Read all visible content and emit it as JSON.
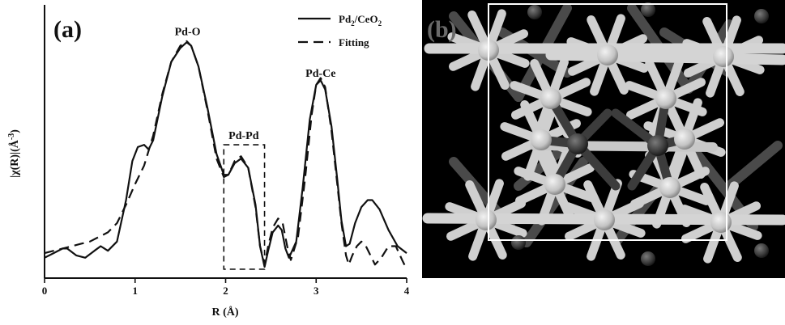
{
  "panel_a": {
    "label": "(a)",
    "peak_labels": [
      "Pd-O",
      "Pd-Pd",
      "Pd-Ce"
    ],
    "legend": {
      "solid": {
        "text": "Pd",
        "sub": "2",
        "text2": "/CeO",
        "sub2": "2"
      },
      "dashed": "Fitting"
    },
    "xlabel": "R (Å)",
    "ylabel": "|χ(R)|(Å",
    "ylabel_sup": "-3",
    "ylabel_close": ")",
    "x_ticks": [
      "0",
      "1",
      "2",
      "3",
      "4"
    ]
  },
  "panel_b": {
    "label": "(b)"
  },
  "chart_data": {
    "type": "line",
    "xlabel": "R (Å)",
    "ylabel": "|χ(R)|(Å-3)",
    "xlim": [
      0,
      4
    ],
    "ylim": [
      0,
      1
    ],
    "grid": false,
    "legend_position": "top-right",
    "annotations": [
      {
        "text": "Pd-O",
        "x": 1.58,
        "y": 0.98
      },
      {
        "text": "Pd-Pd",
        "x": 2.2,
        "y": 0.53
      },
      {
        "text": "Pd-Ce",
        "x": 3.05,
        "y": 0.8
      }
    ],
    "highlight_box": {
      "x": [
        1.98,
        2.43
      ],
      "y": [
        0.0,
        0.54
      ]
    },
    "series": [
      {
        "name": "Pd2/CeO2",
        "style": "solid",
        "x": [
          0,
          0.1,
          0.2,
          0.25,
          0.35,
          0.45,
          0.55,
          0.62,
          0.7,
          0.8,
          0.9,
          0.97,
          1.03,
          1.1,
          1.15,
          1.2,
          1.3,
          1.4,
          1.5,
          1.57,
          1.62,
          1.7,
          1.8,
          1.9,
          1.98,
          2.03,
          2.1,
          2.17,
          2.25,
          2.33,
          2.38,
          2.43,
          2.47,
          2.52,
          2.58,
          2.62,
          2.66,
          2.7,
          2.78,
          2.85,
          2.93,
          3.0,
          3.05,
          3.1,
          3.17,
          3.23,
          3.28,
          3.33,
          3.37,
          3.43,
          3.5,
          3.57,
          3.62,
          3.7,
          3.8,
          3.9,
          4.0
        ],
        "y": [
          0.05,
          0.07,
          0.09,
          0.09,
          0.06,
          0.05,
          0.08,
          0.1,
          0.08,
          0.12,
          0.3,
          0.47,
          0.53,
          0.54,
          0.52,
          0.56,
          0.75,
          0.9,
          0.96,
          0.985,
          0.97,
          0.88,
          0.7,
          0.5,
          0.41,
          0.41,
          0.46,
          0.48,
          0.44,
          0.28,
          0.1,
          0.01,
          0.08,
          0.16,
          0.19,
          0.17,
          0.09,
          0.05,
          0.12,
          0.35,
          0.65,
          0.8,
          0.82,
          0.78,
          0.62,
          0.4,
          0.21,
          0.1,
          0.11,
          0.2,
          0.27,
          0.3,
          0.3,
          0.26,
          0.17,
          0.1,
          0.07
        ]
      },
      {
        "name": "Fitting",
        "style": "dashed",
        "x": [
          0,
          0.1,
          0.2,
          0.3,
          0.4,
          0.5,
          0.6,
          0.7,
          0.8,
          0.9,
          1.0,
          1.1,
          1.2,
          1.3,
          1.4,
          1.5,
          1.57,
          1.62,
          1.7,
          1.8,
          1.9,
          1.98,
          2.03,
          2.1,
          2.17,
          2.25,
          2.33,
          2.38,
          2.43,
          2.47,
          2.52,
          2.58,
          2.63,
          2.68,
          2.72,
          2.8,
          2.88,
          2.95,
          3.0,
          3.05,
          3.1,
          3.17,
          3.23,
          3.28,
          3.33,
          3.36,
          3.4,
          3.45,
          3.5,
          3.55,
          3.6,
          3.65,
          3.72,
          3.8,
          3.88,
          3.95,
          4.0
        ],
        "y": [
          0.07,
          0.08,
          0.09,
          0.1,
          0.11,
          0.12,
          0.14,
          0.16,
          0.2,
          0.28,
          0.37,
          0.45,
          0.58,
          0.76,
          0.9,
          0.97,
          0.99,
          0.97,
          0.88,
          0.69,
          0.48,
          0.4,
          0.41,
          0.47,
          0.49,
          0.44,
          0.27,
          0.1,
          0.02,
          0.1,
          0.18,
          0.22,
          0.2,
          0.1,
          0.04,
          0.14,
          0.4,
          0.67,
          0.8,
          0.83,
          0.79,
          0.6,
          0.38,
          0.2,
          0.06,
          0.02,
          0.06,
          0.1,
          0.12,
          0.1,
          0.06,
          0.02,
          0.05,
          0.1,
          0.1,
          0.04,
          0.0
        ]
      }
    ]
  }
}
